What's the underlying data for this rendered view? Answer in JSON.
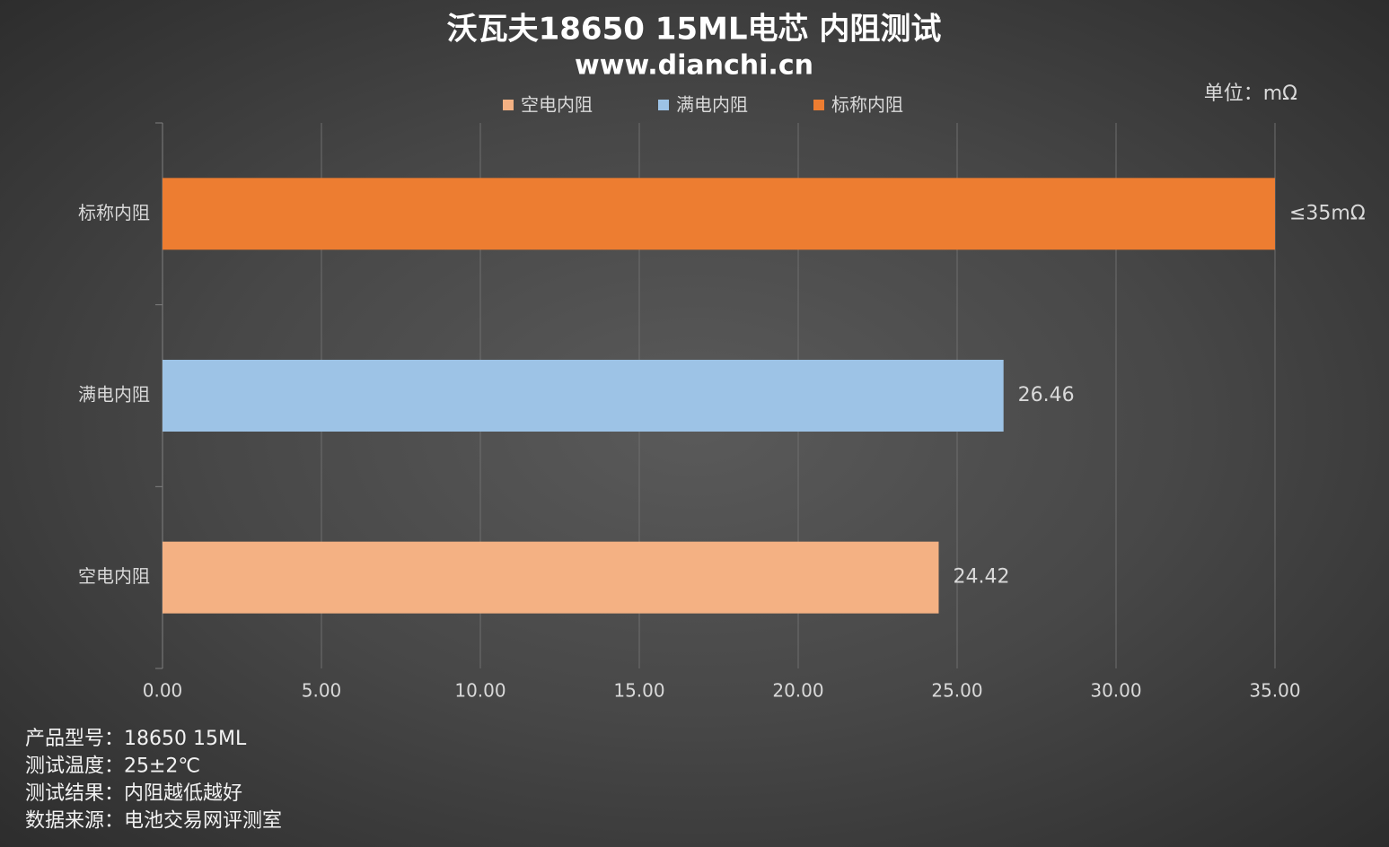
{
  "chart_data": {
    "type": "bar",
    "orientation": "horizontal",
    "title": "沃瓦夫18650 15ML电芯 内阻测试",
    "subtitle": "www.dianchi.cn",
    "unit_label": "单位：mΩ",
    "categories": [
      "空电内阻",
      "满电内阻",
      "标称内阻"
    ],
    "series": [
      {
        "name": "空电内阻",
        "color": "#f4b183",
        "values": [
          24.42,
          null,
          null
        ]
      },
      {
        "name": "满电内阻",
        "color": "#9dc3e6",
        "values": [
          null,
          26.46,
          null
        ]
      },
      {
        "name": "标称内阻",
        "color": "#ed7d31",
        "values": [
          null,
          null,
          35
        ],
        "value_labels": [
          null,
          null,
          "≤35mΩ"
        ]
      }
    ],
    "xlim": [
      0,
      35
    ],
    "xticks": [
      {
        "value": 0,
        "label": "0.00"
      },
      {
        "value": 5,
        "label": "5.00"
      },
      {
        "value": 10,
        "label": "10.00"
      },
      {
        "value": 15,
        "label": "15.00"
      },
      {
        "value": 20,
        "label": "20.00"
      },
      {
        "value": 25,
        "label": "25.00"
      },
      {
        "value": 30,
        "label": "30.00"
      },
      {
        "value": 35,
        "label": "35.00"
      }
    ],
    "grid": true,
    "legend": "top",
    "notes": [
      "产品型号：18650 15ML",
      "测试温度：25±2℃",
      "测试结果：内阻越低越好",
      "数据来源：电池交易网评测室"
    ]
  }
}
